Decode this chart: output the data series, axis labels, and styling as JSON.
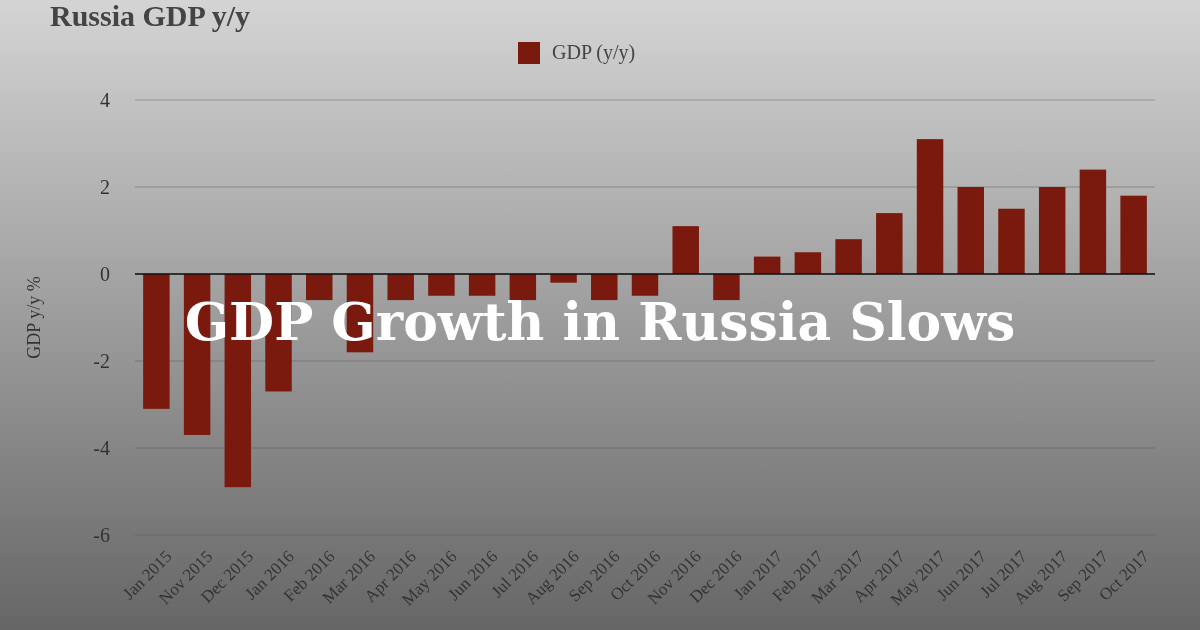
{
  "chart_data": {
    "type": "bar",
    "title": "Russia GDP y/y",
    "ylabel": "GDP y/y %",
    "annotations": [
      "GDP Growth in Russia Slows"
    ],
    "categories": [
      "Jan 2015",
      "Nov 2015",
      "Dec 2015",
      "Jan 2016",
      "Feb 2016",
      "Mar 2016",
      "Apr 2016",
      "May 2016",
      "Jun 2016",
      "Jul 2016",
      "Aug 2016",
      "Sep 2016",
      "Oct 2016",
      "Nov 2016",
      "Dec 2016",
      "Jan 2017",
      "Feb 2017",
      "Mar 2017",
      "Apr 2017",
      "May 2017",
      "Jun 2017",
      "Jul 2017",
      "Aug 2017",
      "Sep 2017",
      "Oct 2017"
    ],
    "series": [
      {
        "name": "GDP (y/y)",
        "color": "#7a1a0e",
        "values": [
          -3.1,
          -3.7,
          -4.9,
          -2.7,
          -0.6,
          -1.8,
          -0.6,
          -0.5,
          -0.5,
          -0.6,
          -0.2,
          -0.6,
          -0.5,
          1.1,
          -0.6,
          0.4,
          0.5,
          0.8,
          1.4,
          3.1,
          2.0,
          1.5,
          2.0,
          2.4,
          1.8
        ]
      }
    ],
    "ylim": [
      -6,
      4
    ],
    "yticks": [
      -6,
      -4,
      -2,
      0,
      2,
      4
    ],
    "grid": "y",
    "legend": "top"
  }
}
